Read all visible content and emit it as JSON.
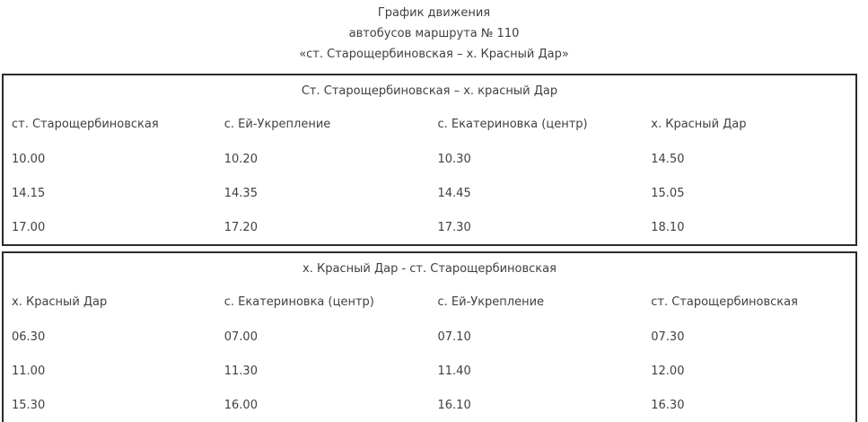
{
  "page_title": {
    "line1": "График движения",
    "line2": "автобусов маршрута № 110",
    "line3": "«ст. Старощербиновская – х. Красный Дар»"
  },
  "tables": [
    {
      "caption": "Ст. Старощербиновская – х. красный Дар",
      "columns": [
        "ст. Старощербиновская",
        "с. Ей-Укрепление",
        "с. Екатериновка (центр)",
        "х. Красный Дар"
      ],
      "rows": [
        [
          "10.00",
          "10.20",
          "10.30",
          "14.50"
        ],
        [
          "14.15",
          "14.35",
          "14.45",
          "15.05"
        ],
        [
          "17.00",
          "17.20",
          "17.30",
          "18.10"
        ]
      ]
    },
    {
      "caption": "х. Красный Дар - ст. Старощербиновская",
      "columns": [
        "х. Красный Дар",
        "с. Екатериновка (центр)",
        "с. Ей-Укрепление",
        "ст. Старощербиновская"
      ],
      "rows": [
        [
          "06.30",
          "07.00",
          "07.10",
          "07.30"
        ],
        [
          "11.00",
          "11.30",
          "11.40",
          "12.00"
        ],
        [
          "15.30",
          "16.00",
          "16.10",
          "16.30"
        ]
      ]
    }
  ],
  "colors": {
    "text": "#404040",
    "border": "#2b2b2b",
    "background": "#ffffff"
  }
}
